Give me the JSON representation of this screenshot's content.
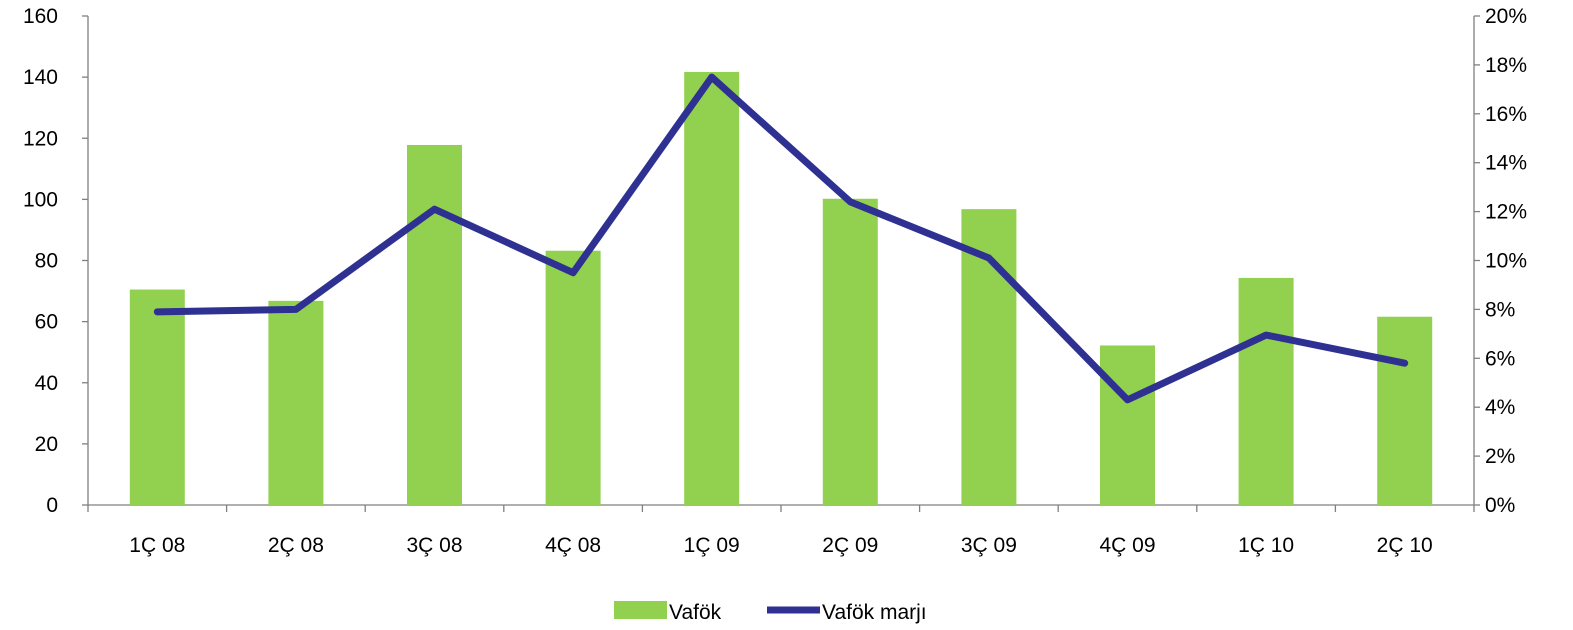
{
  "chart_data": {
    "type": "bar",
    "categories": [
      "1Ç 08",
      "2Ç 08",
      "3Ç 08",
      "4Ç 08",
      "1Ç 09",
      "2Ç 09",
      "3Ç 09",
      "4Ç 09",
      "1Ç 10",
      "2Ç 10"
    ],
    "series": [
      {
        "name": "Vafök",
        "type": "bar",
        "axis": "left",
        "color": "#92D050",
        "values": [
          70.5,
          66.8,
          117.8,
          83.2,
          141.7,
          100.2,
          96.8,
          52.2,
          74.3,
          61.6
        ]
      },
      {
        "name": "Vafök marjı",
        "type": "line",
        "axis": "right",
        "color": "#2E3192",
        "values": [
          7.9,
          8.0,
          12.1,
          9.5,
          17.5,
          12.4,
          10.1,
          4.3,
          6.95,
          5.8
        ]
      }
    ],
    "y_left": {
      "min": 0,
      "max": 160,
      "ticks": [
        "0",
        "20",
        "40",
        "60",
        "80",
        "100",
        "120",
        "140",
        "160"
      ]
    },
    "y_right": {
      "min": 0,
      "max": 20,
      "unit": "%",
      "ticks": [
        "0%",
        "2%",
        "4%",
        "6%",
        "8%",
        "10%",
        "12%",
        "14%",
        "16%",
        "18%",
        "20%"
      ]
    },
    "title": "",
    "xlabel": "",
    "ylabel": "",
    "grid": false,
    "legend": "bottom"
  }
}
